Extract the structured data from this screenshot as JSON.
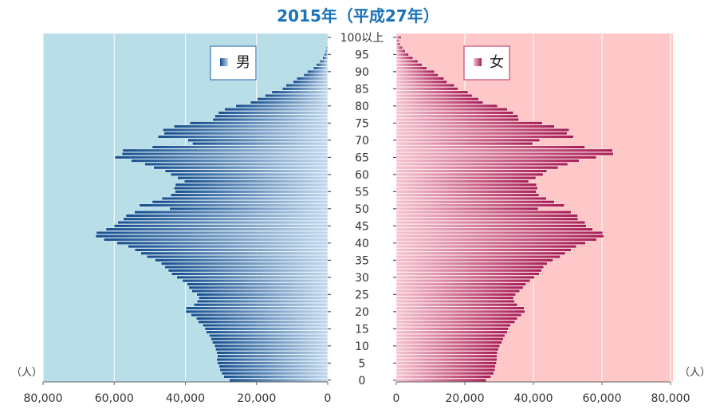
{
  "title": "2015年（平成27年）",
  "chart_data": {
    "type": "bar",
    "orientation": "horizontal",
    "subtype": "population-pyramid",
    "title": "2015年（平成27年）",
    "unit_label": "（人）",
    "xlim": [
      0,
      80000
    ],
    "x_ticks": [
      0,
      20000,
      40000,
      60000,
      80000
    ],
    "x_tick_labels": [
      "0",
      "20,000",
      "40,000",
      "60,000",
      "80,000"
    ],
    "age_tick_labels": [
      "0",
      "5",
      "10",
      "15",
      "20",
      "25",
      "30",
      "35",
      "40",
      "45",
      "50",
      "55",
      "60",
      "65",
      "70",
      "75",
      "80",
      "85",
      "90",
      "95",
      "100以上"
    ],
    "grid": true,
    "categories_note": "ages 0 to 100以上, one bar per year of age",
    "series": [
      {
        "name": "男",
        "color": "#1f5fa6",
        "panel_color": "#b8dee8",
        "values": [
          27600,
          29200,
          29800,
          30300,
          30500,
          31000,
          31200,
          31000,
          31200,
          31500,
          31800,
          32400,
          32800,
          33300,
          34100,
          34500,
          35100,
          36400,
          36900,
          38400,
          39900,
          39800,
          37600,
          36700,
          36200,
          36800,
          38200,
          39000,
          39500,
          40800,
          42400,
          43900,
          44800,
          45800,
          46800,
          48500,
          50800,
          52500,
          54200,
          56100,
          59200,
          62900,
          65200,
          65000,
          62300,
          60000,
          59000,
          57400,
          56700,
          54300,
          44400,
          52900,
          49300,
          46600,
          44100,
          42900,
          43200,
          42800,
          40300,
          42200,
          44100,
          45700,
          48900,
          51400,
          55200,
          59800,
          57800,
          57600,
          49300,
          38000,
          39300,
          47700,
          46000,
          46300,
          43200,
          38700,
          32300,
          31700,
          30700,
          29000,
          25800,
          21700,
          19800,
          17600,
          15700,
          12700,
          11700,
          9700,
          8700,
          6700,
          5700,
          4000,
          3200,
          2200,
          1400,
          1000,
          600,
          400,
          200,
          100,
          200
        ]
      },
      {
        "name": "女",
        "color": "#b5285e",
        "panel_color": "#ffc8c8",
        "values": [
          26200,
          27600,
          28400,
          28800,
          28900,
          29200,
          29400,
          29400,
          29500,
          29800,
          30200,
          30800,
          31200,
          31700,
          32400,
          32700,
          33300,
          34600,
          35300,
          36500,
          37500,
          37300,
          35300,
          34500,
          34200,
          34800,
          36000,
          37000,
          37800,
          39000,
          40300,
          41700,
          42400,
          43000,
          44000,
          45700,
          47800,
          49300,
          51000,
          52500,
          55200,
          58400,
          60500,
          60200,
          57300,
          55400,
          55100,
          53000,
          52900,
          51000,
          41400,
          49000,
          46100,
          43800,
          41600,
          40800,
          41200,
          40900,
          38600,
          40700,
          42800,
          43900,
          47200,
          50000,
          53300,
          58300,
          63300,
          63100,
          55000,
          39800,
          41800,
          51700,
          49800,
          50400,
          46100,
          42600,
          35700,
          35500,
          34100,
          32400,
          29500,
          25300,
          24000,
          22100,
          20900,
          18000,
          16900,
          14800,
          13900,
          12200,
          11100,
          8900,
          7500,
          6300,
          4800,
          3600,
          2600,
          1800,
          1100,
          800,
          1400
        ]
      }
    ],
    "legend": [
      {
        "name": "男",
        "placement": "top-right of left panel"
      },
      {
        "name": "女",
        "placement": "top-right of right panel"
      }
    ]
  }
}
